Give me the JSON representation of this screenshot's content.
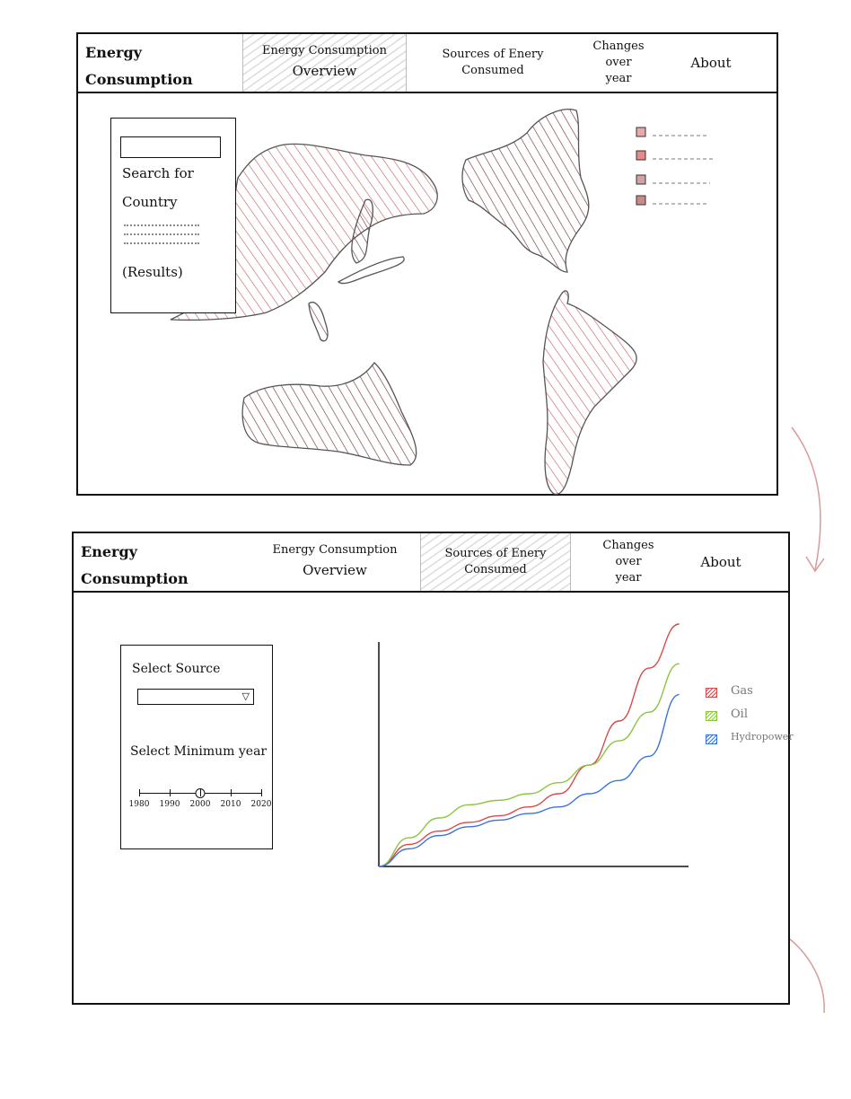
{
  "nav": {
    "brand_line1": "Energy",
    "brand_line2": "Consumption",
    "tabs": [
      {
        "line1": "Energy Consumption",
        "line2": "Overview"
      },
      {
        "line1": "Sources of Enery",
        "line2": "Consumed"
      },
      {
        "line1": "Changes",
        "line2": "over",
        "line3": "year"
      },
      {
        "line1": "About"
      }
    ]
  },
  "overview": {
    "active_tab": 0,
    "search": {
      "placeholder": "",
      "label_line1": "Search for",
      "label_line2": "Country",
      "results_label": "(Results)"
    },
    "legend": {
      "swatch_colors": [
        "#e7a9a9",
        "#e88a8a",
        "#d2a3a3",
        "#c98a8a"
      ]
    },
    "map_colors": {
      "stroke": "#555555",
      "hatch_red": "#c85a5a",
      "hatch_dark": "#6b2b2b"
    }
  },
  "sources": {
    "active_tab": 1,
    "select_source_label": "Select Source",
    "select_source_value": "",
    "select_year_label": "Select Minimum year",
    "year_ticks": [
      "1980",
      "1990",
      "2000",
      "2010",
      "2020"
    ],
    "year_min_selected": "2000",
    "slider_fraction": 0.5
  },
  "chart_data": {
    "type": "line",
    "title": "",
    "xlabel": "",
    "ylabel": "",
    "x": [
      0,
      1,
      2,
      3,
      4,
      5,
      6,
      7,
      8,
      9,
      10
    ],
    "series": [
      {
        "name": "Gas",
        "color": "#d64b4b",
        "values": [
          0,
          10,
          16,
          20,
          23,
          27,
          33,
          46,
          66,
          90,
          110
        ]
      },
      {
        "name": "Oil",
        "color": "#8cc63f",
        "values": [
          0,
          13,
          22,
          28,
          30,
          33,
          38,
          46,
          57,
          70,
          92
        ]
      },
      {
        "name": "Hydropower",
        "color": "#3b73d9",
        "values": [
          0,
          8,
          14,
          18,
          21,
          24,
          27,
          33,
          39,
          50,
          78
        ]
      }
    ],
    "ylim": [
      0,
      110
    ],
    "grid": false,
    "legend_position": "right"
  },
  "colors": {
    "outline": "#111111",
    "arrow": "#d99a9a"
  }
}
